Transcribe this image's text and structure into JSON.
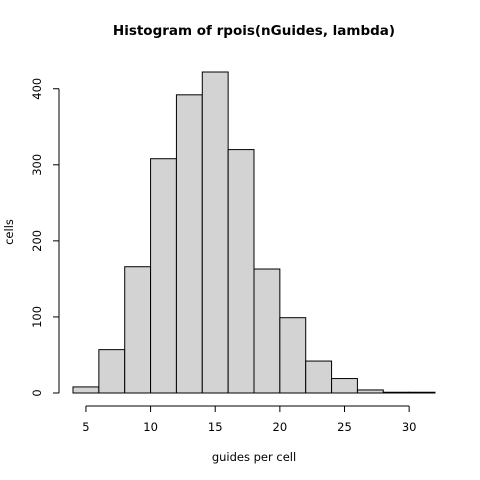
{
  "chart_data": {
    "type": "bar",
    "title": "Histogram of rpois(nGuides, lambda)",
    "xlabel": "guides per cell",
    "ylabel": "cells",
    "bin_edges": [
      4,
      6,
      8,
      10,
      12,
      14,
      16,
      18,
      20,
      22,
      24,
      26,
      28,
      30,
      32
    ],
    "values": [
      8,
      57,
      166,
      308,
      392,
      422,
      320,
      163,
      99,
      42,
      19,
      4,
      1,
      1
    ],
    "xlim": [
      4,
      32
    ],
    "ylim": [
      0,
      422
    ],
    "x_ticks": [
      5,
      10,
      15,
      20,
      25,
      30
    ],
    "y_ticks": [
      0,
      100,
      200,
      300,
      400
    ],
    "bar_color": "#d3d3d3",
    "grid": false
  }
}
